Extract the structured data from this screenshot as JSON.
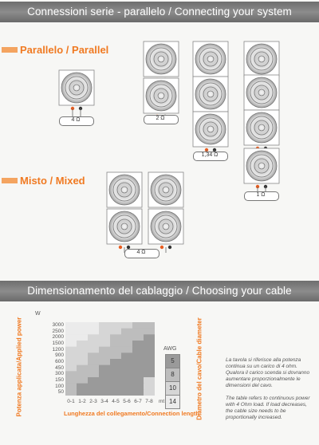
{
  "sections": {
    "connecting_title": "Connessioni serie - parallelo / Connecting your system",
    "parallel_heading": "Parallelo / Parallel",
    "mixed_heading": "Misto / Mixed",
    "cable_title": "Dimensionamento del cablaggio / Choosing your cable"
  },
  "diagrams": {
    "d1": "4 Ω",
    "d2": "2 Ω",
    "d3": "1,34 Ω",
    "d4": "1 Ω",
    "mixed": "4 Ω"
  },
  "chart_data": {
    "type": "heatmap",
    "y_unit": "W",
    "y_ticks": [
      "3000",
      "2500",
      "2000",
      "1500",
      "1200",
      "900",
      "600",
      "450",
      "300",
      "150",
      "100",
      "50"
    ],
    "x_ticks": [
      "0-1",
      "1-2",
      "2-3",
      "3-4",
      "4-5",
      "5-6",
      "6-7",
      "7-8"
    ],
    "x_unit": "mt",
    "ylabel": "Potenza applicata/Applied power",
    "xlabel": "Lunghezza del collegamento/Connection length",
    "right_label": "Diametro del cavo/Cable diameter",
    "legend_title": "AWG",
    "legend": [
      {
        "label": "5",
        "color": "#9a9a9a"
      },
      {
        "label": "8",
        "color": "#bdbdbd"
      },
      {
        "label": "10",
        "color": "#d6d6d6"
      },
      {
        "label": "14",
        "color": "#ebebeb"
      }
    ]
  },
  "note": {
    "it": "La tavola si riferisce alla potenza continua su un carico di 4 ohm. Qualora il carico scenda si dovranno aumentare proporzionalmente le dimensioni del cavo.",
    "en": "The table refers to continuous power with 4 Ohm load. If load decreases, the cable size needs to be proportionally increased."
  }
}
